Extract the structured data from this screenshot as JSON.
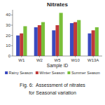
{
  "chart_data": {
    "type": "bar",
    "title": "Nitrates",
    "xlabel": "Sample ID",
    "categories": [
      "W1",
      "W2",
      "W5",
      "W10",
      "W13A"
    ],
    "series": [
      {
        "name": "Rainy Season",
        "color": "#3a4abf",
        "values": [
          20,
          28,
          25,
          32,
          22
        ]
      },
      {
        "name": "Winter Season",
        "color": "#bf3a3a",
        "values": [
          22,
          30,
          30,
          33,
          25
        ]
      },
      {
        "name": "Summer Season",
        "color": "#7abf3a",
        "values": [
          29,
          33,
          42,
          35,
          28
        ]
      }
    ],
    "ylim": [
      0,
      45
    ],
    "yticks": [
      0,
      10,
      20,
      30,
      40
    ],
    "grid": false,
    "legend": "bottom",
    "annotations": [
      "Fig. 6:  Assessment of nitrates",
      "for Seasonal variation"
    ]
  }
}
